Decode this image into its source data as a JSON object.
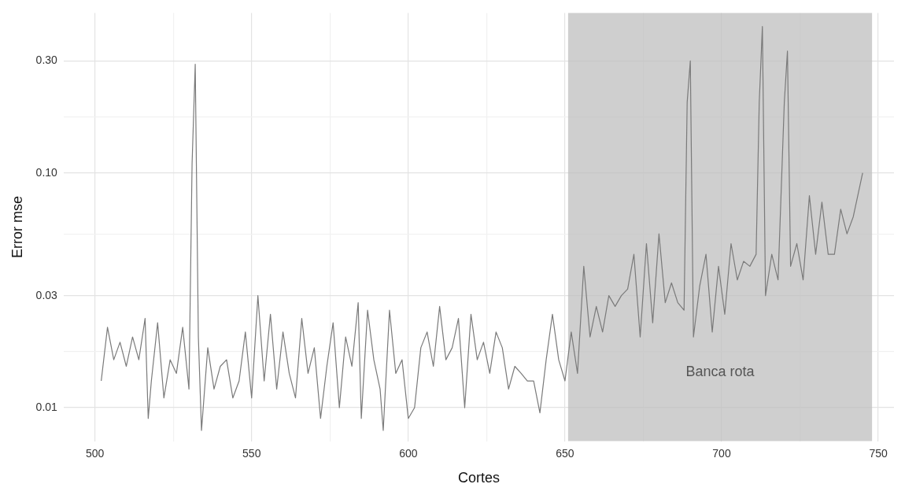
{
  "chart_data": {
    "type": "line",
    "xlabel": "Cortes",
    "ylabel": "Error mse",
    "log": "y",
    "grid": true,
    "legend": false,
    "marker": "none",
    "line_style": "solid",
    "xlim": [
      490,
      755
    ],
    "xticks": [
      500,
      {
        "value": 525,
        "label": null
      },
      550,
      {
        "value": 575,
        "label": null
      },
      600,
      {
        "value": 625,
        "label": null
      },
      650,
      {
        "value": 675,
        "label": null
      },
      700,
      {
        "value": 725,
        "label": null
      },
      750
    ],
    "ylim": [
      0.0072,
      0.48
    ],
    "yticks": [
      0.01,
      {
        "value": 0.0173,
        "label": null
      },
      0.03,
      {
        "value": 0.0548,
        "label": null
      },
      {
        "value": 0.1,
        "label": "0.10"
      },
      {
        "value": 0.173,
        "label": null
      },
      {
        "value": 0.3,
        "label": "0.30"
      }
    ],
    "bands": [
      {
        "axis": "x",
        "from": 651,
        "to": 748,
        "label": "Banca rota",
        "color": "#bfbfbf"
      }
    ],
    "series": [
      {
        "color": "#7a7a7a",
        "x": [
          502,
          504,
          506,
          508,
          510,
          512,
          514,
          516,
          517,
          518,
          520,
          522,
          524,
          526,
          528,
          530,
          531,
          532,
          533,
          534,
          536,
          538,
          540,
          542,
          544,
          546,
          548,
          550,
          552,
          554,
          556,
          558,
          560,
          562,
          564,
          566,
          568,
          570,
          572,
          574,
          576,
          578,
          580,
          582,
          584,
          585,
          587,
          589,
          591,
          592,
          594,
          596,
          598,
          600,
          602,
          604,
          606,
          608,
          610,
          612,
          614,
          616,
          618,
          620,
          622,
          624,
          626,
          628,
          630,
          632,
          634,
          636,
          638,
          640,
          642,
          644,
          646,
          648,
          650,
          652,
          654,
          656,
          658,
          660,
          662,
          664,
          666,
          668,
          670,
          672,
          674,
          676,
          678,
          680,
          682,
          684,
          686,
          688,
          689,
          690,
          691,
          693,
          695,
          697,
          699,
          701,
          703,
          705,
          707,
          709,
          711,
          712,
          713,
          714,
          716,
          718,
          720,
          721,
          722,
          724,
          726,
          728,
          730,
          732,
          734,
          736,
          738,
          740,
          742,
          745
        ],
        "values": [
          0.013,
          0.022,
          0.016,
          0.019,
          0.015,
          0.02,
          0.016,
          0.024,
          0.009,
          0.013,
          0.023,
          0.011,
          0.016,
          0.014,
          0.022,
          0.012,
          0.11,
          0.29,
          0.02,
          0.008,
          0.018,
          0.012,
          0.015,
          0.016,
          0.011,
          0.013,
          0.021,
          0.011,
          0.03,
          0.013,
          0.025,
          0.012,
          0.021,
          0.014,
          0.011,
          0.024,
          0.014,
          0.018,
          0.009,
          0.015,
          0.023,
          0.01,
          0.02,
          0.015,
          0.028,
          0.009,
          0.026,
          0.016,
          0.012,
          0.008,
          0.026,
          0.014,
          0.016,
          0.009,
          0.01,
          0.018,
          0.021,
          0.015,
          0.027,
          0.016,
          0.018,
          0.024,
          0.01,
          0.025,
          0.016,
          0.019,
          0.014,
          0.021,
          0.018,
          0.012,
          0.015,
          0.014,
          0.013,
          0.013,
          0.0095,
          0.016,
          0.025,
          0.016,
          0.013,
          0.021,
          0.014,
          0.04,
          0.02,
          0.027,
          0.021,
          0.03,
          0.027,
          0.03,
          0.032,
          0.045,
          0.02,
          0.05,
          0.023,
          0.055,
          0.028,
          0.034,
          0.028,
          0.026,
          0.2,
          0.3,
          0.02,
          0.033,
          0.045,
          0.021,
          0.04,
          0.025,
          0.05,
          0.035,
          0.042,
          0.04,
          0.045,
          0.2,
          0.42,
          0.03,
          0.045,
          0.035,
          0.2,
          0.33,
          0.04,
          0.05,
          0.035,
          0.08,
          0.045,
          0.075,
          0.045,
          0.045,
          0.07,
          0.055,
          0.065,
          0.1
        ]
      }
    ]
  }
}
